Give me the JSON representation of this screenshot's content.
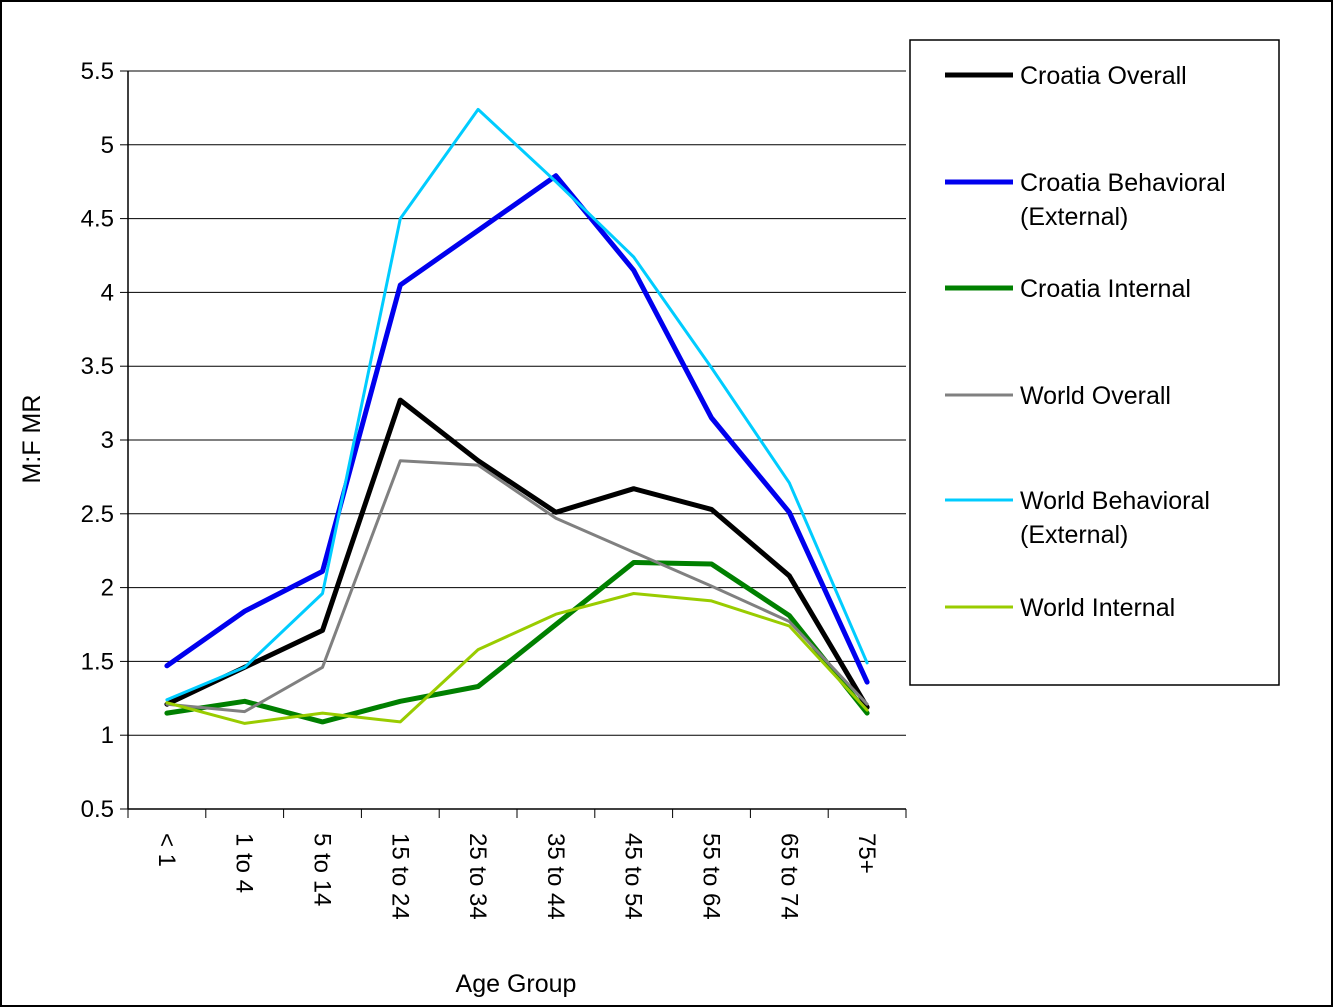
{
  "chart_data": {
    "type": "line",
    "xlabel": "Age Group",
    "ylabel": "M:F MR",
    "ylim": [
      0.5,
      5.5
    ],
    "yticks": [
      "0.5",
      "1",
      "1.5",
      "2",
      "2.5",
      "3",
      "3.5",
      "4",
      "4.5",
      "5",
      "5.5"
    ],
    "grid": "horizontal",
    "legend_position": "right",
    "categories": [
      "< 1",
      "1 to 4",
      "5 to 14",
      "15 to 24",
      "25 to 34",
      "35 to 44",
      "45 to 54",
      "55 to 64",
      "65 to 74",
      "75+"
    ],
    "series": [
      {
        "name": "Croatia Overall",
        "color": "#000000",
        "width": 5,
        "values": [
          1.21,
          1.46,
          1.71,
          3.27,
          2.86,
          2.51,
          2.67,
          2.53,
          2.08,
          1.19
        ]
      },
      {
        "name": "Croatia Behavioral\n(External)",
        "color": "#0000ee",
        "width": 5,
        "values": [
          1.47,
          1.84,
          2.11,
          4.05,
          4.42,
          4.79,
          4.15,
          3.15,
          2.51,
          1.36
        ]
      },
      {
        "name": "Croatia Internal",
        "color": "#008000",
        "width": 5,
        "values": [
          1.15,
          1.23,
          1.09,
          1.23,
          1.33,
          1.75,
          2.17,
          2.16,
          1.81,
          1.15
        ]
      },
      {
        "name": "World Overall",
        "color": "#808080",
        "width": 3,
        "values": [
          1.21,
          1.16,
          1.46,
          2.86,
          2.83,
          2.47,
          2.24,
          2.01,
          1.77,
          1.21
        ]
      },
      {
        "name": "World Behavioral\n(External)",
        "color": "#00ccff",
        "width": 3,
        "values": [
          1.24,
          1.46,
          1.96,
          4.5,
          5.24,
          4.75,
          4.24,
          3.49,
          2.71,
          1.49
        ]
      },
      {
        "name": "World Internal",
        "color": "#99cc00",
        "width": 3,
        "values": [
          1.22,
          1.08,
          1.15,
          1.09,
          1.58,
          1.82,
          1.96,
          1.91,
          1.74,
          1.17
        ]
      }
    ]
  }
}
